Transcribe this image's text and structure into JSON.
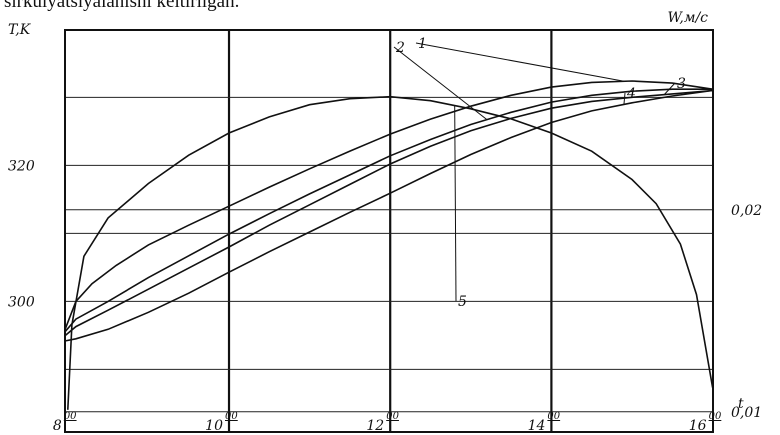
{
  "caption": "sirkulyatsiyalanishi keltirilgan.",
  "chart_data": {
    "type": "line",
    "title": "",
    "y_left_label": "T,K",
    "y_right_label": "W,м/с",
    "x_label": "t",
    "x_tick_labels": [
      {
        "hour": "8",
        "sup": "00"
      },
      {
        "hour": "10",
        "sup": "00"
      },
      {
        "hour": "12",
        "sup": "00"
      },
      {
        "hour": "14",
        "sup": "00"
      },
      {
        "hour": "16",
        "sup": "00"
      }
    ],
    "x_ticks": [
      8,
      10,
      12,
      14,
      16
    ],
    "xlim": [
      7.965,
      16.005
    ],
    "y_left_ticks": [
      "320",
      "300"
    ],
    "y_left_tick_values": [
      320,
      300
    ],
    "ylim_left": [
      280.8,
      339.9
    ],
    "y_right_ticks": [
      "0,02",
      "0,01"
    ],
    "y_right_tick_values": [
      0.02,
      0.01
    ],
    "ylim_right": [
      0.009,
      0.0289
    ],
    "grid": true,
    "series": [
      {
        "name": "1",
        "axis": "left",
        "x": [
          7.97,
          8.1,
          8.3,
          8.6,
          9.0,
          9.5,
          10.0,
          10.5,
          11.0,
          11.5,
          12.0,
          12.5,
          13.0,
          13.5,
          14.0,
          14.5,
          15.0,
          15.5,
          16.0
        ],
        "y": [
          296.0,
          300.0,
          302.6,
          305.3,
          308.3,
          311.2,
          314.0,
          316.8,
          319.5,
          322.1,
          324.6,
          326.8,
          328.7,
          330.3,
          331.5,
          332.2,
          332.4,
          332.1,
          331.2
        ]
      },
      {
        "name": "2",
        "axis": "left",
        "x": [
          7.97,
          8.1,
          8.5,
          9.0,
          9.5,
          10.0,
          10.5,
          11.0,
          11.5,
          12.0,
          12.5,
          13.0,
          13.5,
          14.0,
          14.5,
          15.0,
          15.5,
          16.0
        ],
        "y": [
          295.6,
          297.4,
          300.0,
          303.5,
          306.7,
          309.9,
          312.9,
          315.8,
          318.6,
          321.4,
          323.8,
          326.0,
          327.8,
          329.3,
          330.3,
          330.9,
          331.2,
          331.2
        ]
      },
      {
        "name": "3",
        "axis": "left",
        "x": [
          7.97,
          8.1,
          8.5,
          9.0,
          9.5,
          10.0,
          10.5,
          11.0,
          11.5,
          12.0,
          12.5,
          13.0,
          13.5,
          14.0,
          14.5,
          15.0,
          15.5,
          16.0
        ],
        "y": [
          295.0,
          296.3,
          298.7,
          301.8,
          304.9,
          308.0,
          311.2,
          314.2,
          317.2,
          320.2,
          322.8,
          325.1,
          326.9,
          328.4,
          329.4,
          330.0,
          330.5,
          331.0
        ]
      },
      {
        "name": "4",
        "axis": "left",
        "x": [
          7.97,
          8.1,
          8.5,
          9.0,
          9.5,
          10.0,
          10.5,
          11.0,
          11.5,
          12.0,
          12.5,
          13.0,
          13.5,
          14.0,
          14.5,
          15.0,
          15.5,
          16.0
        ],
        "y": [
          294.2,
          294.5,
          295.9,
          298.4,
          301.2,
          304.3,
          307.3,
          310.2,
          313.1,
          315.9,
          318.8,
          321.6,
          324.1,
          326.3,
          328.0,
          329.2,
          330.2,
          331.0
        ]
      },
      {
        "name": "5",
        "axis": "right",
        "x": [
          8.0,
          8.05,
          8.2,
          8.5,
          9.0,
          9.5,
          10.0,
          10.5,
          11.0,
          11.5,
          12.0,
          12.5,
          13.0,
          13.5,
          14.0,
          14.5,
          15.0,
          15.3,
          15.6,
          15.8,
          16.0
        ],
        "y": [
          0.0101,
          0.0143,
          0.0177,
          0.0196,
          0.0213,
          0.0227,
          0.0238,
          0.0246,
          0.0252,
          0.0255,
          0.0256,
          0.0254,
          0.025,
          0.0245,
          0.0238,
          0.0229,
          0.0215,
          0.0203,
          0.0183,
          0.0158,
          0.0112
        ]
      }
    ],
    "curve_labels": [
      "1",
      "2",
      "3",
      "4",
      "5"
    ]
  }
}
